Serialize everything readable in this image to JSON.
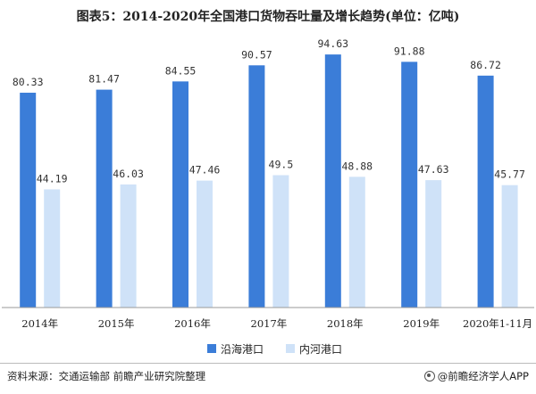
{
  "chart_data": {
    "type": "bar",
    "title": "图表5：2014-2020年全国港口货物吞吐量及增长趋势(单位：亿吨)",
    "categories": [
      "2014年",
      "2015年",
      "2016年",
      "2017年",
      "2018年",
      "2019年",
      "2020年1-11月"
    ],
    "series": [
      {
        "name": "沿海港口",
        "color": "#3b7dd8",
        "values": [
          80.33,
          81.47,
          84.55,
          90.57,
          94.63,
          91.88,
          86.72
        ]
      },
      {
        "name": "内河港口",
        "color": "#cfe2f8",
        "values": [
          44.19,
          46.03,
          47.46,
          49.5,
          48.88,
          47.63,
          45.77
        ]
      }
    ],
    "value_labels": [
      [
        "80.33",
        "81.47",
        "84.55",
        "90.57",
        "94.63",
        "91.88",
        "86.72"
      ],
      [
        "44.19",
        "46.03",
        "47.46",
        "49.5",
        "48.88",
        "47.63",
        "45.77"
      ]
    ],
    "ylim": [
      0,
      100
    ],
    "grid": false,
    "legend_position": "bottom-center"
  },
  "source": "资料来源：交通运输部 前瞻产业研究院整理",
  "brand": "@前瞻经济学人APP"
}
